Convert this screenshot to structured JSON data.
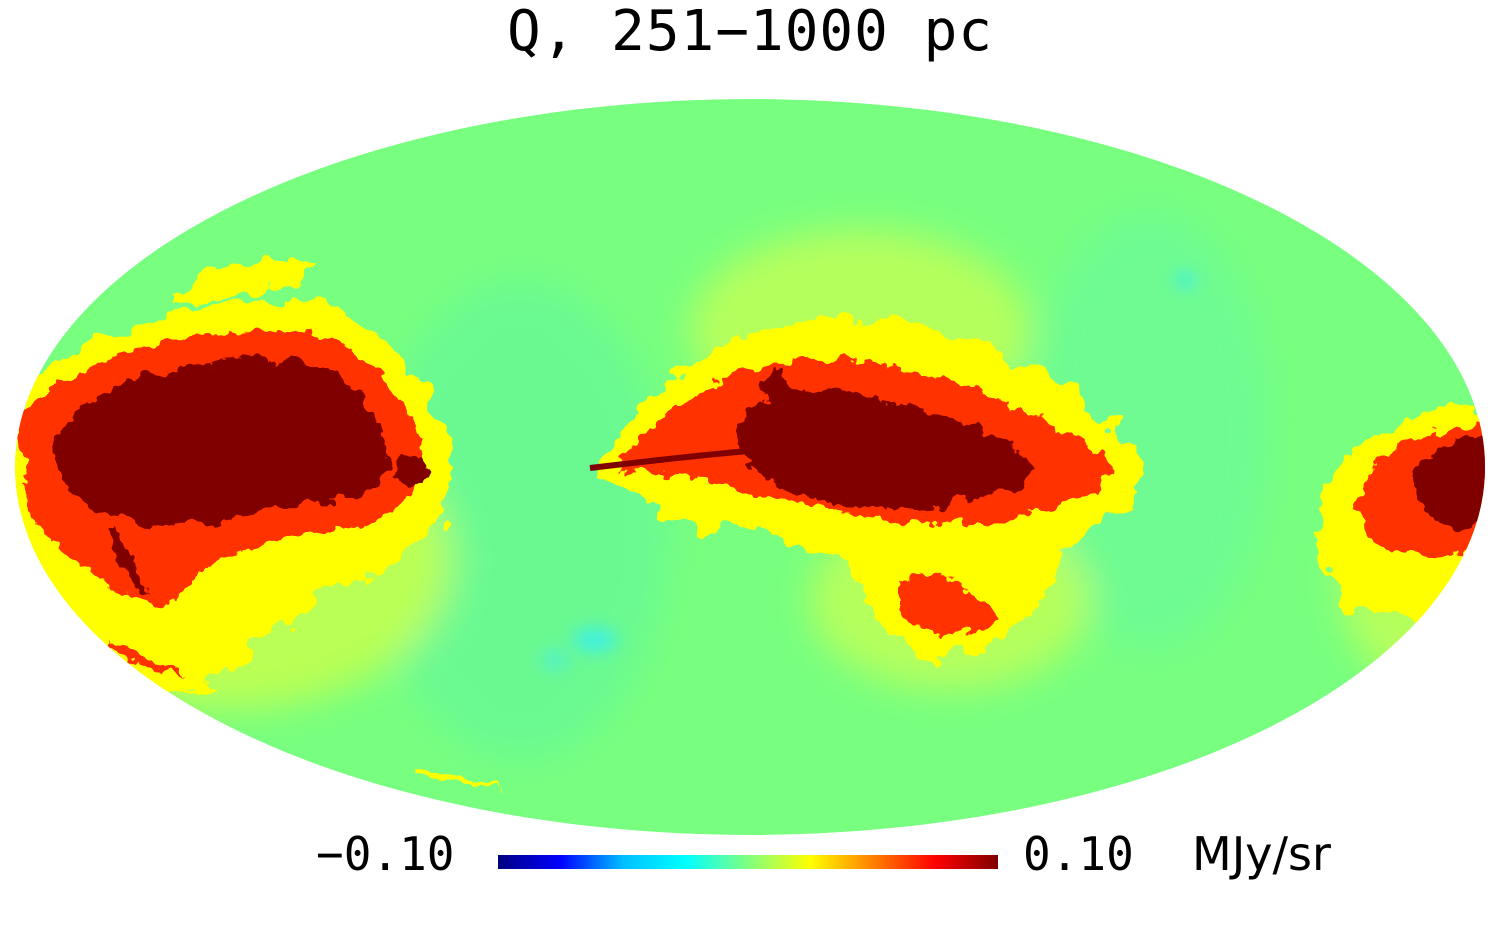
{
  "title": "Q, 251−1000 pc",
  "projection": "Mollweide all-sky",
  "colorbar": {
    "min_label": "−0.10",
    "max_label": "0.10",
    "unit": "MJy/sr",
    "colormap": [
      "#000080",
      "#0000ff",
      "#00bfff",
      "#00ffff",
      "#80ff80",
      "#ffff00",
      "#ff8000",
      "#ff0000",
      "#800000"
    ]
  },
  "colors": {
    "background_field": "#78ff80",
    "positive_emission": "#ffff00",
    "strong_emission": "#800000",
    "negative_emission": "#00ffff"
  }
}
